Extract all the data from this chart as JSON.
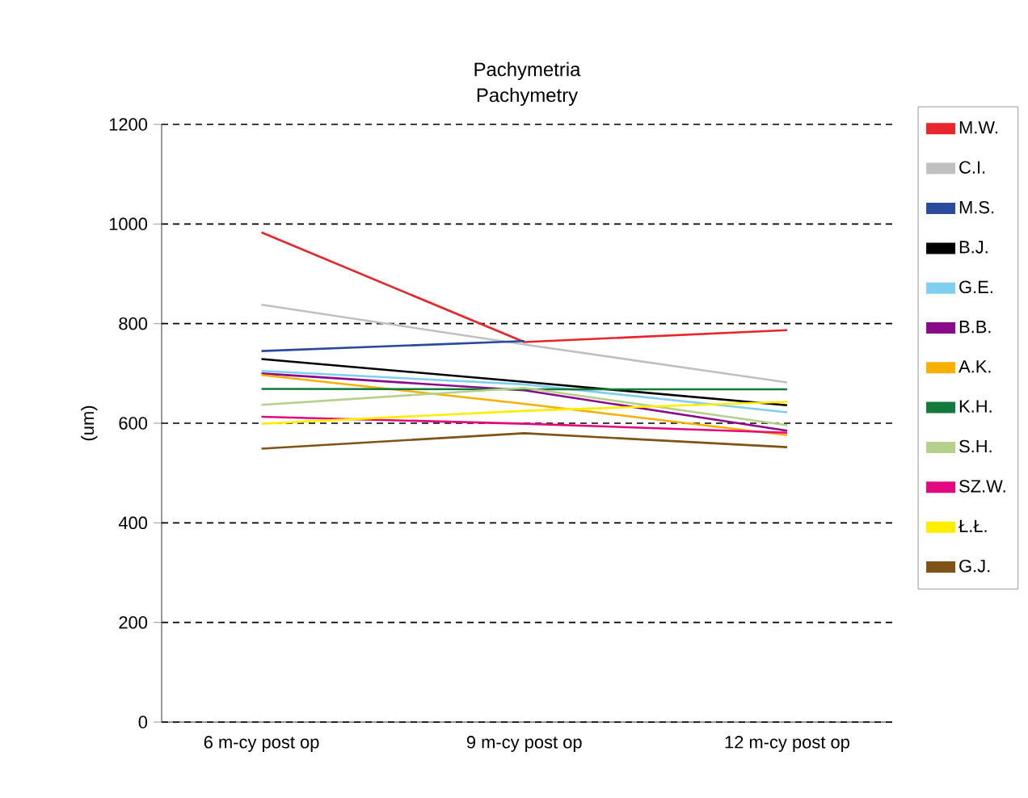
{
  "chart_data": {
    "type": "line",
    "title": "Pachymetria",
    "subtitle": "Pachymetry",
    "ylabel": "(um)",
    "categories": [
      "6 m-cy post op",
      "9 m-cy post op",
      "12 m-cy post op"
    ],
    "ylim": [
      0,
      1200
    ],
    "yticks": [
      0,
      200,
      400,
      600,
      800,
      1000,
      1200
    ],
    "grid": "y",
    "legend": "right",
    "marker": "none",
    "line_style": "solid",
    "series": [
      {
        "name": "M.W.",
        "color": "#e8262b",
        "values": [
          983,
          763,
          787
        ]
      },
      {
        "name": "C.I.",
        "color": "#c0c0c0",
        "values": [
          838,
          758,
          682
        ]
      },
      {
        "name": "M.S.",
        "color": "#2a4a9b",
        "values": [
          745,
          765,
          null
        ]
      },
      {
        "name": "B.J.",
        "color": "#000000",
        "values": [
          729,
          683,
          636
        ]
      },
      {
        "name": "G.E.",
        "color": "#80cff0",
        "values": [
          705,
          678,
          622
        ]
      },
      {
        "name": "B.B.",
        "color": "#8b0a8b",
        "values": [
          700,
          666,
          585
        ]
      },
      {
        "name": "A.K.",
        "color": "#f8b000",
        "values": [
          697,
          639,
          576
        ]
      },
      {
        "name": "K.H.",
        "color": "#127a3a",
        "values": [
          669,
          668,
          668
        ]
      },
      {
        "name": "S.H.",
        "color": "#b5d08a",
        "values": [
          637,
          671,
          596
        ]
      },
      {
        "name": "SZ.W.",
        "color": "#e2097e",
        "values": [
          613,
          599,
          581
        ]
      },
      {
        "name": "Ł.Ł.",
        "color": "#ffee00",
        "values": [
          599,
          625,
          643
        ]
      },
      {
        "name": "G.J.",
        "color": "#7f5217",
        "values": [
          549,
          580,
          552
        ]
      }
    ]
  }
}
